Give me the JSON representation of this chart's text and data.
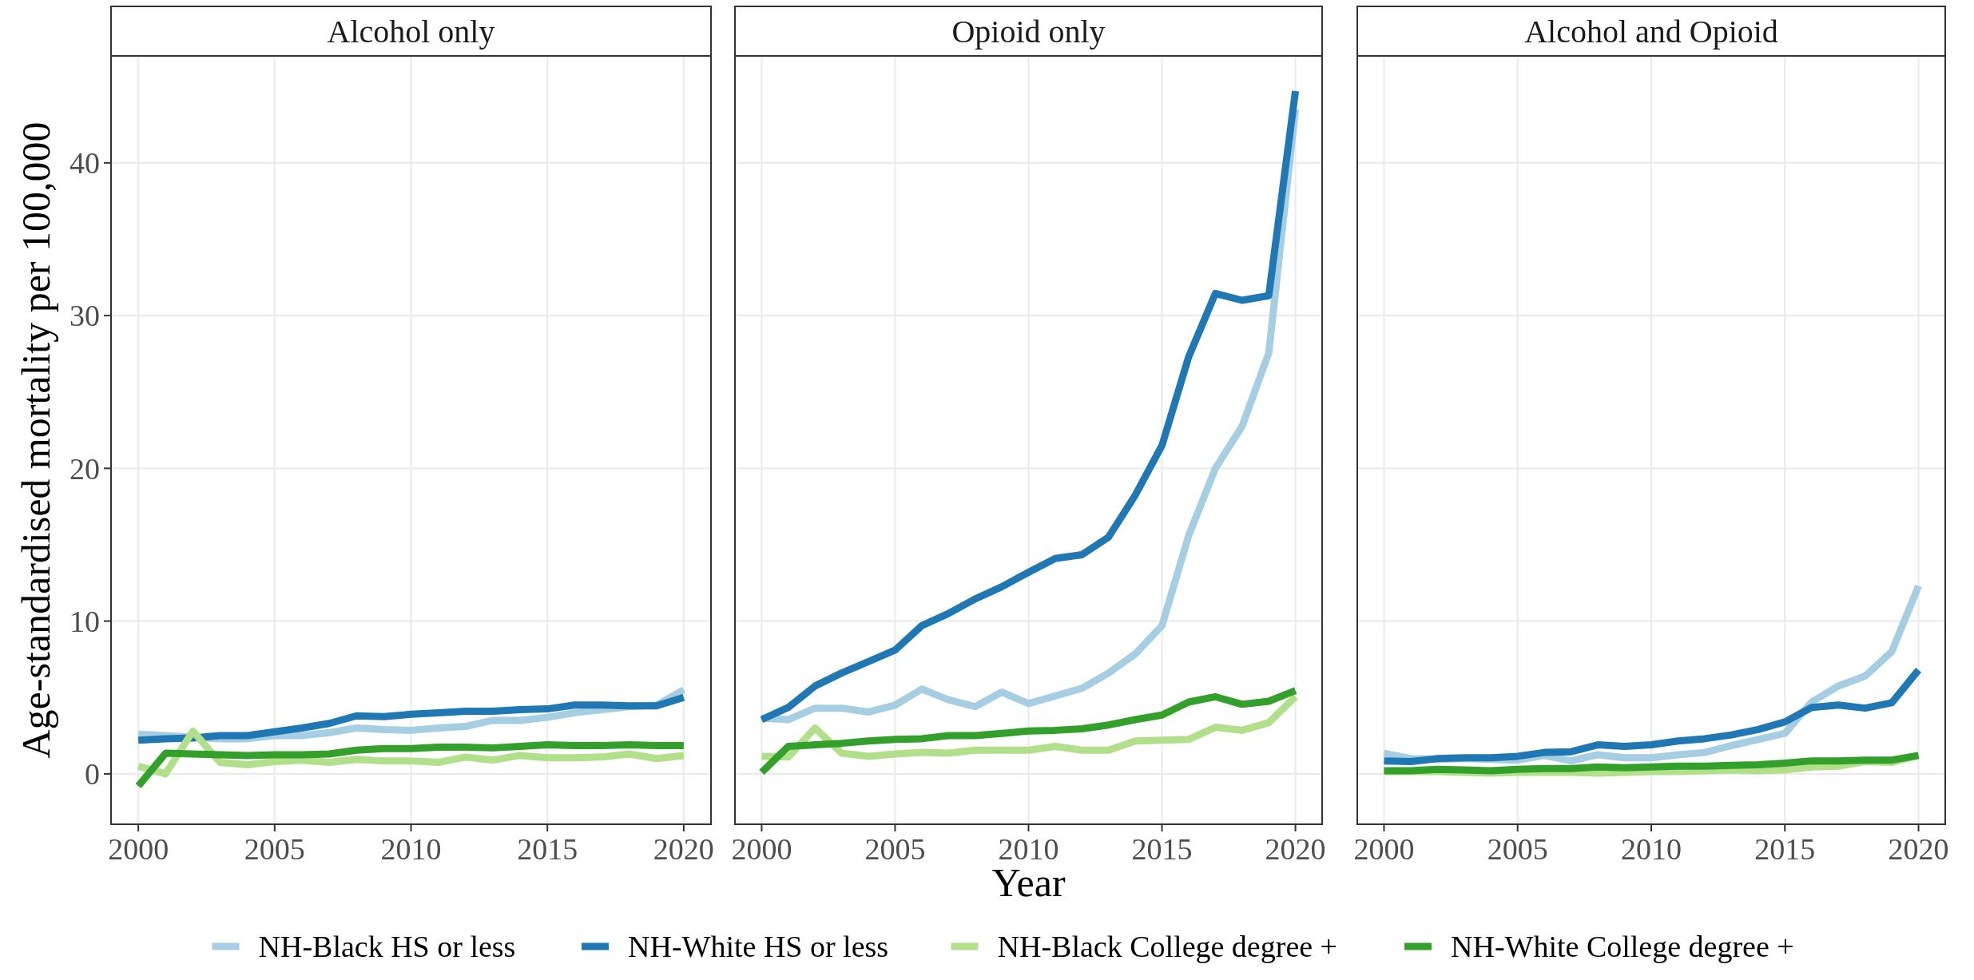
{
  "chart_data": [
    {
      "type": "line",
      "title": "Alcohol only",
      "ylabel": "Age-standardised mortality per 100,000",
      "x": [
        2000,
        2001,
        2002,
        2003,
        2004,
        2005,
        2006,
        2007,
        2008,
        2009,
        2010,
        2011,
        2012,
        2013,
        2014,
        2015,
        2016,
        2017,
        2018,
        2019,
        2020
      ],
      "xlim": [
        1999,
        2021
      ],
      "xticks": [
        2000,
        2005,
        2010,
        2015,
        2020
      ],
      "ylim": [
        -3.3,
        47
      ],
      "yticks": [
        0,
        10,
        20,
        30,
        40
      ],
      "grid": true,
      "legend": "bottom",
      "series": [
        {
          "name": "NH-Black HS or less",
          "color": "#a6cee3",
          "values": [
            2.6,
            2.5,
            2.4,
            2.3,
            2.3,
            2.5,
            2.5,
            2.7,
            3.0,
            2.9,
            2.85,
            3.0,
            3.1,
            3.5,
            3.5,
            3.7,
            4.0,
            4.2,
            4.4,
            4.5,
            5.5
          ]
        },
        {
          "name": "NH-White HS or less",
          "color": "#1f78b4",
          "values": [
            2.2,
            2.3,
            2.35,
            2.5,
            2.5,
            2.75,
            3.0,
            3.3,
            3.8,
            3.75,
            3.9,
            4.0,
            4.1,
            4.1,
            4.2,
            4.25,
            4.5,
            4.5,
            4.45,
            4.45,
            5.0
          ]
        },
        {
          "name": "NH-Black College degree +",
          "color": "#b2df8a",
          "values": [
            0.5,
            0.0,
            2.8,
            0.75,
            0.6,
            0.8,
            0.9,
            0.75,
            0.95,
            0.85,
            0.85,
            0.75,
            1.1,
            0.9,
            1.2,
            1.05,
            1.05,
            1.1,
            1.3,
            1.0,
            1.2
          ]
        },
        {
          "name": "NH-White College degree +",
          "color": "#33a02c",
          "values": [
            -0.8,
            1.35,
            1.3,
            1.25,
            1.2,
            1.25,
            1.25,
            1.3,
            1.55,
            1.65,
            1.65,
            1.75,
            1.75,
            1.7,
            1.8,
            1.9,
            1.85,
            1.85,
            1.9,
            1.85,
            1.85
          ]
        }
      ]
    },
    {
      "type": "line",
      "title": "Opioid only",
      "xlabel": "Year",
      "x": [
        2000,
        2001,
        2002,
        2003,
        2004,
        2005,
        2006,
        2007,
        2008,
        2009,
        2010,
        2011,
        2012,
        2013,
        2014,
        2015,
        2016,
        2017,
        2018,
        2019,
        2020
      ],
      "xlim": [
        1999,
        2021
      ],
      "xticks": [
        2000,
        2005,
        2010,
        2015,
        2020
      ],
      "ylim": [
        -3.3,
        47
      ],
      "yticks": [
        0,
        10,
        20,
        30,
        40
      ],
      "tick_labels": "x",
      "grid": true,
      "series": [
        {
          "color": "#a6cee3",
          "values": [
            3.65,
            3.55,
            4.3,
            4.3,
            4.05,
            4.5,
            5.55,
            4.85,
            4.4,
            5.35,
            4.6,
            5.1,
            5.6,
            6.6,
            7.85,
            9.7,
            15.6,
            20.0,
            22.75,
            27.55,
            43.5
          ]
        },
        {
          "color": "#1f78b4",
          "values": [
            3.55,
            4.35,
            5.75,
            6.6,
            7.35,
            8.1,
            9.7,
            10.5,
            11.45,
            12.25,
            13.2,
            14.1,
            14.35,
            15.5,
            18.25,
            21.5,
            27.3,
            31.45,
            31.0,
            31.3,
            44.7
          ]
        },
        {
          "color": "#b2df8a",
          "values": [
            1.15,
            1.1,
            3.0,
            1.35,
            1.15,
            1.3,
            1.4,
            1.35,
            1.55,
            1.55,
            1.55,
            1.8,
            1.55,
            1.55,
            2.15,
            2.2,
            2.25,
            3.05,
            2.85,
            3.35,
            5.05
          ]
        },
        {
          "color": "#33a02c",
          "values": [
            0.1,
            1.8,
            1.9,
            2.0,
            2.15,
            2.25,
            2.3,
            2.5,
            2.5,
            2.65,
            2.8,
            2.85,
            2.95,
            3.2,
            3.55,
            3.85,
            4.7,
            5.05,
            4.55,
            4.75,
            5.45
          ]
        }
      ]
    },
    {
      "type": "line",
      "title": "Alcohol and Opioid",
      "x": [
        2000,
        2001,
        2002,
        2003,
        2004,
        2005,
        2006,
        2007,
        2008,
        2009,
        2010,
        2011,
        2012,
        2013,
        2014,
        2015,
        2016,
        2017,
        2018,
        2019,
        2020
      ],
      "xlim": [
        1999,
        2021
      ],
      "xticks": [
        2000,
        2005,
        2010,
        2015,
        2020
      ],
      "ylim": [
        -3.3,
        47
      ],
      "yticks": [
        0,
        10,
        20,
        30,
        40
      ],
      "tick_labels": "x",
      "grid": true,
      "series": [
        {
          "color": "#a6cee3",
          "values": [
            1.35,
            1.0,
            0.95,
            1.0,
            0.95,
            0.9,
            1.2,
            0.85,
            1.25,
            1.05,
            1.05,
            1.25,
            1.4,
            1.85,
            2.25,
            2.65,
            4.7,
            5.75,
            6.4,
            8.0,
            12.3
          ]
        },
        {
          "color": "#1f78b4",
          "values": [
            0.85,
            0.8,
            1.0,
            1.05,
            1.05,
            1.15,
            1.4,
            1.45,
            1.9,
            1.8,
            1.9,
            2.15,
            2.3,
            2.55,
            2.9,
            3.4,
            4.35,
            4.5,
            4.3,
            4.65,
            6.8
          ]
        },
        {
          "color": "#b2df8a",
          "values": [
            0.15,
            0.15,
            0.15,
            0.1,
            0.05,
            0.1,
            0.1,
            0.1,
            0.05,
            0.1,
            0.15,
            0.15,
            0.2,
            0.25,
            0.2,
            0.25,
            0.45,
            0.5,
            0.8,
            0.75,
            1.2
          ]
        },
        {
          "color": "#33a02c",
          "values": [
            0.2,
            0.2,
            0.3,
            0.25,
            0.2,
            0.3,
            0.35,
            0.35,
            0.45,
            0.4,
            0.45,
            0.5,
            0.5,
            0.55,
            0.6,
            0.7,
            0.85,
            0.85,
            0.9,
            0.9,
            1.2
          ]
        }
      ]
    }
  ]
}
